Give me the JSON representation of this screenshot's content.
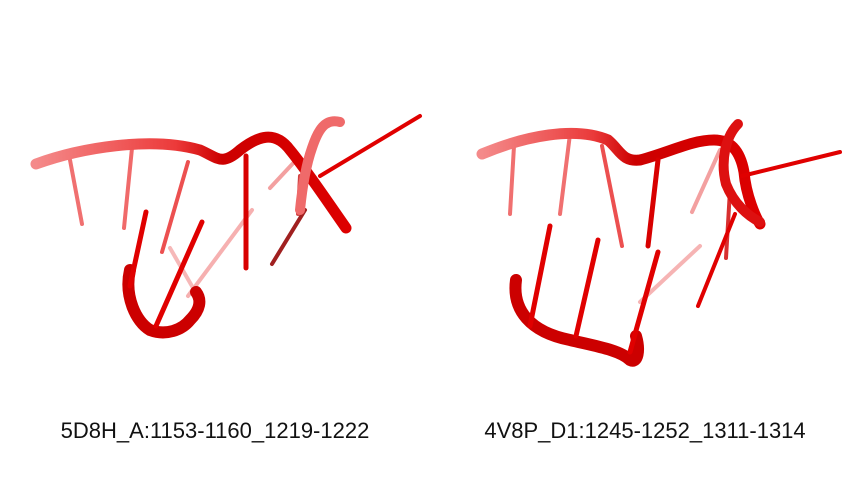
{
  "panels": [
    {
      "caption": "5D8H_A:1153-1160_1219-1222"
    },
    {
      "caption": "4V8P_D1:1245-1252_1311-1314"
    }
  ],
  "colors": {
    "backbone": "#e00000",
    "backbone_light": "#f26a6a",
    "background": "#ffffff"
  }
}
